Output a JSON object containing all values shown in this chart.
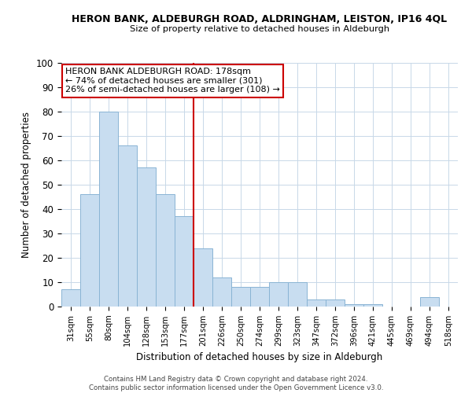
{
  "title1": "HERON BANK, ALDEBURGH ROAD, ALDRINGHAM, LEISTON, IP16 4QL",
  "title2": "Size of property relative to detached houses in Aldeburgh",
  "xlabel": "Distribution of detached houses by size in Aldeburgh",
  "ylabel": "Number of detached properties",
  "categories": [
    "31sqm",
    "55sqm",
    "80sqm",
    "104sqm",
    "128sqm",
    "153sqm",
    "177sqm",
    "201sqm",
    "226sqm",
    "250sqm",
    "274sqm",
    "299sqm",
    "323sqm",
    "347sqm",
    "372sqm",
    "396sqm",
    "421sqm",
    "445sqm",
    "469sqm",
    "494sqm",
    "518sqm"
  ],
  "values": [
    7,
    46,
    80,
    66,
    57,
    46,
    37,
    24,
    12,
    8,
    8,
    10,
    10,
    3,
    3,
    1,
    1,
    0,
    0,
    4,
    0
  ],
  "bar_color": "#c8ddf0",
  "bar_edge_color": "#8ab4d4",
  "vline_index": 6,
  "vline_color": "#cc0000",
  "ylim": [
    0,
    100
  ],
  "annotation_lines": [
    "HERON BANK ALDEBURGH ROAD: 178sqm",
    "← 74% of detached houses are smaller (301)",
    "26% of semi-detached houses are larger (108) →"
  ],
  "annotation_box_color": "#ffffff",
  "annotation_box_edge": "#cc0000",
  "footer1": "Contains HM Land Registry data © Crown copyright and database right 2024.",
  "footer2": "Contains public sector information licensed under the Open Government Licence v3.0."
}
